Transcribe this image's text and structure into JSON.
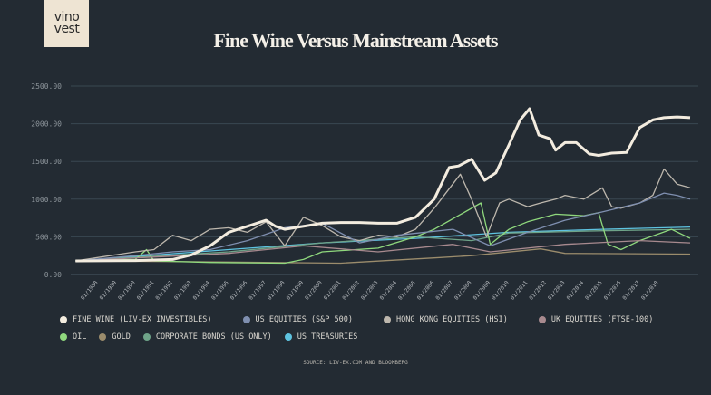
{
  "logo": {
    "line1": "vino",
    "line2": "vest"
  },
  "chart_data": {
    "type": "line",
    "title": "Fine Wine Versus Mainstream Assets",
    "xlabel": "",
    "ylabel": "",
    "ylim": [
      0,
      2500
    ],
    "xlim": [
      1986.7,
      2019.8
    ],
    "y_ticks": [
      "0.00",
      "500.00",
      "1000.00",
      "1500.00",
      "2000.00",
      "2500.00"
    ],
    "x_ticks": [
      "01/1988",
      "01/1989",
      "01/1990",
      "01/1991",
      "01/1992",
      "01/1993",
      "01/1994",
      "01/1995",
      "01/1996",
      "01/1997",
      "01/1998",
      "01/1999",
      "01/2000",
      "01/2001",
      "01/2002",
      "01/2003",
      "01/2004",
      "01/2005",
      "01/2006",
      "01/2007",
      "01/2008",
      "01/2009",
      "01/2010",
      "01/2011",
      "01/2012",
      "01/2013",
      "01/2014",
      "01/2015",
      "01/2016",
      "01/2017",
      "01/2018"
    ],
    "grid": true,
    "legend_position": "bottom",
    "source": "SOURCE: LIV-EX.COM AND BLOOMBERG",
    "series": [
      {
        "name": "FINE WINE (LIV-EX INVESTIBLES)",
        "color": "#f3ecdf",
        "width": 3,
        "points": [
          [
            1986.8,
            180
          ],
          [
            1990,
            185
          ],
          [
            1992,
            200
          ],
          [
            1993,
            260
          ],
          [
            1994,
            380
          ],
          [
            1995,
            560
          ],
          [
            1996,
            640
          ],
          [
            1997,
            720
          ],
          [
            1997.5,
            640
          ],
          [
            1998,
            600
          ],
          [
            1999,
            640
          ],
          [
            2000,
            680
          ],
          [
            2001,
            690
          ],
          [
            2002,
            690
          ],
          [
            2003,
            680
          ],
          [
            2004,
            680
          ],
          [
            2005,
            760
          ],
          [
            2006,
            1000
          ],
          [
            2006.8,
            1420
          ],
          [
            2007.3,
            1440
          ],
          [
            2008,
            1530
          ],
          [
            2008.7,
            1250
          ],
          [
            2009.3,
            1350
          ],
          [
            2010,
            1720
          ],
          [
            2010.6,
            2050
          ],
          [
            2011.1,
            2200
          ],
          [
            2011.6,
            1850
          ],
          [
            2012.2,
            1800
          ],
          [
            2012.5,
            1650
          ],
          [
            2013,
            1750
          ],
          [
            2013.6,
            1750
          ],
          [
            2014.3,
            1600
          ],
          [
            2014.8,
            1580
          ],
          [
            2015.5,
            1610
          ],
          [
            2016.3,
            1620
          ],
          [
            2017,
            1950
          ],
          [
            2017.7,
            2050
          ],
          [
            2018.3,
            2080
          ],
          [
            2019,
            2090
          ],
          [
            2019.7,
            2080
          ]
        ]
      },
      {
        "name": "US EQUITIES (S&P 500)",
        "color": "#7f8fb0",
        "width": 1.3,
        "points": [
          [
            1986.8,
            180
          ],
          [
            1990,
            250
          ],
          [
            1992,
            300
          ],
          [
            1994,
            330
          ],
          [
            1996,
            450
          ],
          [
            1998,
            620
          ],
          [
            2000,
            680
          ],
          [
            2002,
            420
          ],
          [
            2004,
            520
          ],
          [
            2007,
            600
          ],
          [
            2009,
            380
          ],
          [
            2011,
            560
          ],
          [
            2013,
            720
          ],
          [
            2015,
            830
          ],
          [
            2017,
            950
          ],
          [
            2018.3,
            1080
          ],
          [
            2019,
            1050
          ],
          [
            2019.7,
            1000
          ]
        ]
      },
      {
        "name": "HONG KONG EQUITIES (HSI)",
        "color": "#bdb7ad",
        "width": 1.3,
        "points": [
          [
            1986.8,
            180
          ],
          [
            1990,
            300
          ],
          [
            1991,
            330
          ],
          [
            1992,
            520
          ],
          [
            1993,
            450
          ],
          [
            1994,
            600
          ],
          [
            1995,
            620
          ],
          [
            1996,
            560
          ],
          [
            1997,
            700
          ],
          [
            1998,
            380
          ],
          [
            1999,
            760
          ],
          [
            2000,
            650
          ],
          [
            2001,
            500
          ],
          [
            2002,
            450
          ],
          [
            2003,
            520
          ],
          [
            2004,
            500
          ],
          [
            2005,
            600
          ],
          [
            2006,
            880
          ],
          [
            2007.4,
            1330
          ],
          [
            2008,
            1000
          ],
          [
            2008.8,
            500
          ],
          [
            2009.5,
            950
          ],
          [
            2010,
            1000
          ],
          [
            2011,
            900
          ],
          [
            2011.7,
            950
          ],
          [
            2012.5,
            1000
          ],
          [
            2013,
            1050
          ],
          [
            2014,
            1000
          ],
          [
            2015,
            1150
          ],
          [
            2015.5,
            900
          ],
          [
            2016,
            880
          ],
          [
            2017,
            950
          ],
          [
            2017.7,
            1050
          ],
          [
            2018.3,
            1400
          ],
          [
            2019,
            1200
          ],
          [
            2019.7,
            1150
          ]
        ]
      },
      {
        "name": "UK EQUITIES (FTSE-100)",
        "color": "#a88a8f",
        "width": 1.3,
        "points": [
          [
            1986.8,
            180
          ],
          [
            1995,
            280
          ],
          [
            1999,
            380
          ],
          [
            2003,
            300
          ],
          [
            2007,
            400
          ],
          [
            2009,
            300
          ],
          [
            2013,
            400
          ],
          [
            2017,
            450
          ],
          [
            2019.7,
            420
          ]
        ]
      },
      {
        "name": "OIL",
        "color": "#8fd87d",
        "width": 1.3,
        "points": [
          [
            1986.8,
            180
          ],
          [
            1990,
            200
          ],
          [
            1990.6,
            330
          ],
          [
            1991,
            180
          ],
          [
            1994,
            160
          ],
          [
            1998,
            150
          ],
          [
            1999,
            200
          ],
          [
            2000,
            300
          ],
          [
            2003,
            350
          ],
          [
            2005,
            500
          ],
          [
            2006,
            600
          ],
          [
            2008.5,
            950
          ],
          [
            2009,
            400
          ],
          [
            2010,
            600
          ],
          [
            2011,
            700
          ],
          [
            2012.5,
            800
          ],
          [
            2014,
            780
          ],
          [
            2014.8,
            820
          ],
          [
            2015.3,
            400
          ],
          [
            2016,
            330
          ],
          [
            2017,
            450
          ],
          [
            2018.7,
            600
          ],
          [
            2019.7,
            480
          ]
        ]
      },
      {
        "name": "GOLD",
        "color": "#9b8c6c",
        "width": 1.3,
        "points": [
          [
            1986.8,
            180
          ],
          [
            1993,
            170
          ],
          [
            2001,
            150
          ],
          [
            2006,
            220
          ],
          [
            2008,
            250
          ],
          [
            2011.7,
            340
          ],
          [
            2013,
            280
          ],
          [
            2019.7,
            270
          ]
        ]
      },
      {
        "name": "CORPORATE BONDS (US ONLY)",
        "color": "#6fa489",
        "width": 1.3,
        "points": [
          [
            1986.8,
            180
          ],
          [
            1995,
            300
          ],
          [
            2000,
            420
          ],
          [
            2005,
            500
          ],
          [
            2008,
            450
          ],
          [
            2010,
            550
          ],
          [
            2015,
            580
          ],
          [
            2019.7,
            600
          ]
        ]
      },
      {
        "name": "US TREASURIES",
        "color": "#5ec3e0",
        "width": 1.3,
        "points": [
          [
            1986.8,
            180
          ],
          [
            1995,
            330
          ],
          [
            2000,
            420
          ],
          [
            2005,
            480
          ],
          [
            2010,
            560
          ],
          [
            2015,
            600
          ],
          [
            2019.7,
            630
          ]
        ]
      }
    ]
  }
}
